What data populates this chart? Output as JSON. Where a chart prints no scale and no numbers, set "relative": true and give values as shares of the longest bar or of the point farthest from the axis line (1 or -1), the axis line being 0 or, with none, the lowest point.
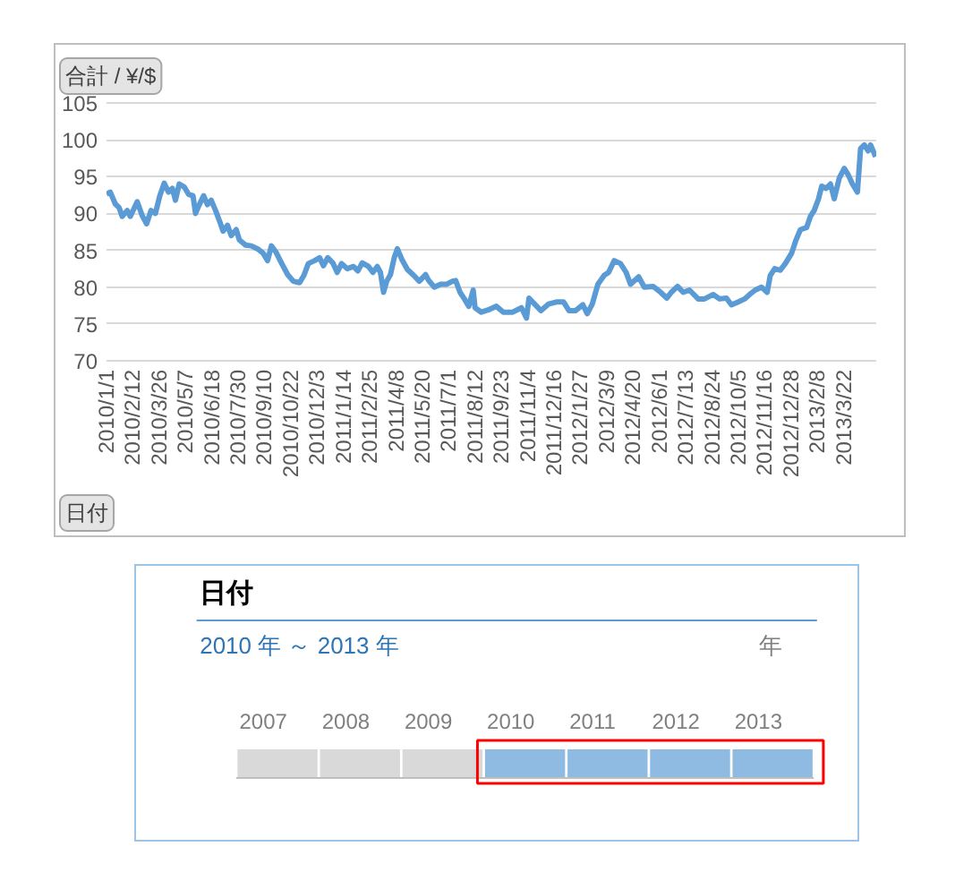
{
  "chart_data": [
    {
      "type": "line",
      "ylabel": "合計 / ¥/$",
      "xlabel": "日付",
      "line_style": "solid",
      "grid": "y",
      "x": [
        "2010-01-01",
        "2010-01-07",
        "2010-01-15",
        "2010-01-21",
        "2010-01-26",
        "2010-02-03",
        "2010-02-08",
        "2010-02-19",
        "2010-02-27",
        "2010-03-06",
        "2010-03-13",
        "2010-03-20",
        "2010-03-27",
        "2010-04-03",
        "2010-04-10",
        "2010-04-16",
        "2010-04-21",
        "2010-04-27",
        "2010-05-05",
        "2010-05-12",
        "2010-05-19",
        "2010-05-23",
        "2010-05-29",
        "2010-06-05",
        "2010-06-11",
        "2010-06-17",
        "2010-06-24",
        "2010-07-01",
        "2010-07-06",
        "2010-07-13",
        "2010-07-19",
        "2010-07-27",
        "2010-08-01",
        "2010-08-11",
        "2010-08-20",
        "2010-08-30",
        "2010-09-08",
        "2010-09-15",
        "2010-09-21",
        "2010-09-28",
        "2010-10-07",
        "2010-10-17",
        "2010-10-26",
        "2010-11-05",
        "2010-11-12",
        "2010-11-19",
        "2010-11-29",
        "2010-12-07",
        "2010-12-13",
        "2010-12-20",
        "2010-12-28",
        "2011-01-04",
        "2011-01-11",
        "2011-01-20",
        "2011-01-30",
        "2011-02-06",
        "2011-02-13",
        "2011-02-23",
        "2011-03-02",
        "2011-03-09",
        "2011-03-14",
        "2011-03-19",
        "2011-03-24",
        "2011-03-30",
        "2011-04-05",
        "2011-04-10",
        "2011-04-17",
        "2011-04-26",
        "2011-05-06",
        "2011-05-15",
        "2011-05-25",
        "2011-05-30",
        "2011-06-08",
        "2011-06-18",
        "2011-06-28",
        "2011-07-07",
        "2011-07-12",
        "2011-07-19",
        "2011-07-26",
        "2011-08-02",
        "2011-08-09",
        "2011-08-12",
        "2011-08-22",
        "2011-09-02",
        "2011-09-15",
        "2011-09-26",
        "2011-10-11",
        "2011-10-25",
        "2011-11-02",
        "2011-11-06",
        "2011-11-15",
        "2011-11-25",
        "2011-12-07",
        "2011-12-21",
        "2011-12-31",
        "2012-01-09",
        "2012-01-19",
        "2012-01-31",
        "2012-02-07",
        "2012-02-15",
        "2012-02-24",
        "2012-03-05",
        "2012-03-12",
        "2012-03-21",
        "2012-03-31",
        "2012-04-09",
        "2012-04-16",
        "2012-04-29",
        "2012-05-08",
        "2012-05-22",
        "2012-06-03",
        "2012-06-13",
        "2012-06-20",
        "2012-06-30",
        "2012-07-09",
        "2012-07-19",
        "2012-08-02",
        "2012-08-12",
        "2012-08-26",
        "2012-09-05",
        "2012-09-16",
        "2012-09-24",
        "2012-10-05",
        "2012-10-15",
        "2012-10-23",
        "2012-11-01",
        "2012-11-11",
        "2012-11-20",
        "2012-11-25",
        "2012-12-02",
        "2012-12-11",
        "2012-12-19",
        "2012-12-29",
        "2013-01-05",
        "2013-01-12",
        "2013-01-22",
        "2013-01-28",
        "2013-02-03",
        "2013-02-10",
        "2013-02-15",
        "2013-02-22",
        "2013-03-01",
        "2013-03-07",
        "2013-03-15",
        "2013-03-23",
        "2013-03-29",
        "2013-04-05",
        "2013-04-13",
        "2013-04-18",
        "2013-04-24",
        "2013-04-30",
        "2013-05-04",
        "2013-05-12"
      ],
      "series": [
        {
          "color": "#5b9bd5",
          "values": [
            92.6,
            92.9,
            91.3,
            90.8,
            89.6,
            90.4,
            89.6,
            91.6,
            89.7,
            88.6,
            90.4,
            90.0,
            92.4,
            94.1,
            92.9,
            93.4,
            91.8,
            94.0,
            93.6,
            92.6,
            92.4,
            90.0,
            91.2,
            92.4,
            91.2,
            91.8,
            90.4,
            88.8,
            87.6,
            88.4,
            87.0,
            87.8,
            86.4,
            85.7,
            85.6,
            85.2,
            84.6,
            83.6,
            85.6,
            84.8,
            83.3,
            81.7,
            80.8,
            80.6,
            81.6,
            83.2,
            83.6,
            84.0,
            82.9,
            84.0,
            83.3,
            82.0,
            83.2,
            82.5,
            82.8,
            82.2,
            83.3,
            82.8,
            82.0,
            82.8,
            82.0,
            79.3,
            80.8,
            81.7,
            84.0,
            85.2,
            83.8,
            82.4,
            81.6,
            80.8,
            81.7,
            80.9,
            80.0,
            80.4,
            80.4,
            80.8,
            80.9,
            79.3,
            78.4,
            77.4,
            79.6,
            77.2,
            76.6,
            76.9,
            77.4,
            76.6,
            76.6,
            77.2,
            75.8,
            78.5,
            77.7,
            76.8,
            77.7,
            78.0,
            78.0,
            76.8,
            76.8,
            77.6,
            76.4,
            77.7,
            80.4,
            81.6,
            82.0,
            83.6,
            83.2,
            82.0,
            80.4,
            81.4,
            80.0,
            80.1,
            79.3,
            78.5,
            79.3,
            80.1,
            79.3,
            79.6,
            78.4,
            78.4,
            79.0,
            78.4,
            78.5,
            77.6,
            78.0,
            78.4,
            79.0,
            79.6,
            80.0,
            79.3,
            81.6,
            82.5,
            82.3,
            83.2,
            84.6,
            86.4,
            87.8,
            88.1,
            89.6,
            90.4,
            92.0,
            93.7,
            93.4,
            94.0,
            92.0,
            94.8,
            96.1,
            95.3,
            94.0,
            92.9,
            98.8,
            99.3,
            98.5,
            99.3,
            97.7
          ]
        }
      ],
      "xlim": [
        "2010-01-01",
        "2013-05-13"
      ],
      "xticks": [
        {
          "value": "2010-01-01",
          "label": "2010/1/1"
        },
        {
          "value": "2010-02-12",
          "label": "2010/2/12"
        },
        {
          "value": "2010-03-26",
          "label": "2010/3/26"
        },
        {
          "value": "2010-05-07",
          "label": "2010/5/7"
        },
        {
          "value": "2010-06-18",
          "label": "2010/6/18"
        },
        {
          "value": "2010-07-30",
          "label": "2010/7/30"
        },
        {
          "value": "2010-09-10",
          "label": "2010/9/10"
        },
        {
          "value": "2010-10-22",
          "label": "2010/10/22"
        },
        {
          "value": "2010-12-03",
          "label": "2010/12/3"
        },
        {
          "value": "2011-01-14",
          "label": "2011/1/14"
        },
        {
          "value": "2011-02-25",
          "label": "2011/2/25"
        },
        {
          "value": "2011-04-08",
          "label": "2011/4/8"
        },
        {
          "value": "2011-05-20",
          "label": "2011/5/20"
        },
        {
          "value": "2011-07-01",
          "label": "2011/7/1"
        },
        {
          "value": "2011-08-12",
          "label": "2011/8/12"
        },
        {
          "value": "2011-09-23",
          "label": "2011/9/23"
        },
        {
          "value": "2011-11-04",
          "label": "2011/11/4"
        },
        {
          "value": "2011-12-16",
          "label": "2011/12/16"
        },
        {
          "value": "2012-01-27",
          "label": "2012/1/27"
        },
        {
          "value": "2012-03-09",
          "label": "2012/3/9"
        },
        {
          "value": "2012-04-20",
          "label": "2012/4/20"
        },
        {
          "value": "2012-06-01",
          "label": "2012/6/1"
        },
        {
          "value": "2012-07-13",
          "label": "2012/7/13"
        },
        {
          "value": "2012-08-24",
          "label": "2012/8/24"
        },
        {
          "value": "2012-10-05",
          "label": "2012/10/5"
        },
        {
          "value": "2012-11-16",
          "label": "2012/11/16"
        },
        {
          "value": "2012-12-28",
          "label": "2012/12/28"
        },
        {
          "value": "2013-02-08",
          "label": "2013/2/8"
        },
        {
          "value": "2013-03-22",
          "label": "2013/3/22"
        }
      ],
      "ylim": [
        70,
        105
      ],
      "yticks": [
        70,
        75,
        80,
        85,
        90,
        95,
        100,
        105
      ]
    },
    {
      "type": "bar",
      "relative": true,
      "title": "日付",
      "subtitle": "2010 年 ～ 2013 年",
      "annotations": [
        "年"
      ],
      "categories": [
        "2007",
        "2008",
        "2009",
        "2010",
        "2011",
        "2012",
        "2013"
      ],
      "values": [
        1,
        1,
        1,
        1,
        1,
        1,
        1
      ],
      "colors": [
        "#d9d9d9",
        "#d9d9d9",
        "#d9d9d9",
        "#8fbbe3",
        "#8fbbe3",
        "#8fbbe3",
        "#8fbbe3"
      ]
    }
  ]
}
